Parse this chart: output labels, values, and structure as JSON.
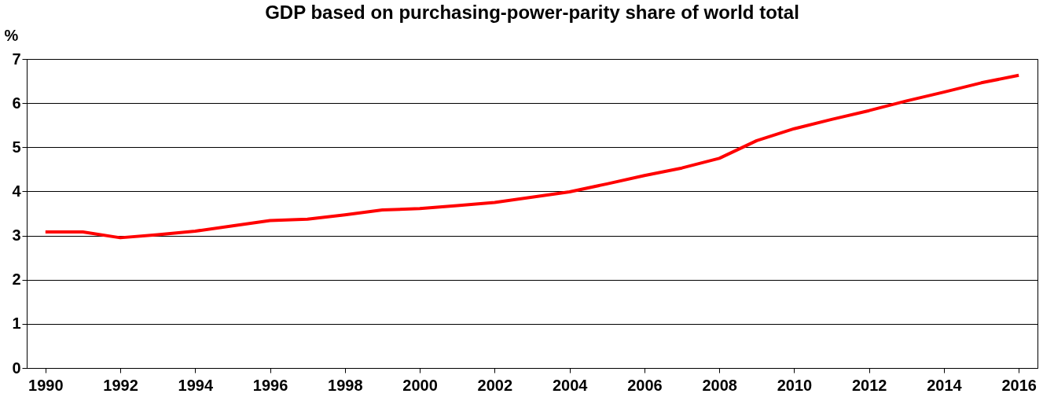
{
  "chart_data": {
    "type": "line",
    "title": "GDP based on purchasing-power-parity share of world total",
    "ylabel": "%",
    "x": [
      1990,
      1991,
      1992,
      1993,
      1994,
      1995,
      1996,
      1997,
      1998,
      1999,
      2000,
      2001,
      2002,
      2003,
      2004,
      2005,
      2006,
      2007,
      2008,
      2009,
      2010,
      2011,
      2012,
      2013,
      2014,
      2015,
      2016
    ],
    "series": [
      {
        "color": "#ff0000",
        "values": [
          3.08,
          3.08,
          2.95,
          3.02,
          3.1,
          3.22,
          3.34,
          3.37,
          3.47,
          3.58,
          3.61,
          3.68,
          3.75,
          3.87,
          3.99,
          4.17,
          4.36,
          4.53,
          4.75,
          5.15,
          5.42,
          5.63,
          5.83,
          6.05,
          6.25,
          6.46,
          6.63
        ]
      }
    ],
    "xlim": [
      1989.5,
      2016.5
    ],
    "xticks": [
      1990,
      1992,
      1994,
      1996,
      1998,
      2000,
      2002,
      2004,
      2006,
      2008,
      2010,
      2012,
      2014,
      2016
    ],
    "ylim": [
      0,
      7
    ],
    "yticks": [
      0,
      1,
      2,
      3,
      4,
      5,
      6,
      7
    ],
    "grid": "y",
    "marker": "none",
    "line_style": "solid"
  }
}
